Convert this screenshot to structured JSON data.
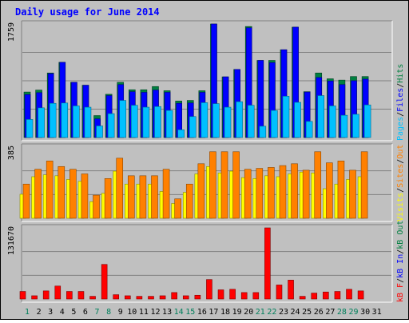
{
  "colors": {
    "background": "#c0c0c0",
    "title": "#0000ff",
    "hits": "#008040",
    "files": "#0000ff",
    "pages": "#00c0ff",
    "visits": "#ffff00",
    "sites": "#ff8000",
    "kbytes": "#ff0000",
    "weekend": "#00805c"
  },
  "chart_data": [
    {
      "type": "bar",
      "title": "Daily usage for June 2014",
      "categories": [
        "1",
        "2",
        "3",
        "4",
        "5",
        "6",
        "7",
        "8",
        "9",
        "10",
        "11",
        "12",
        "13",
        "14",
        "15",
        "16",
        "17",
        "18",
        "19",
        "20",
        "21",
        "22",
        "23",
        "24",
        "25",
        "26",
        "27",
        "28",
        "29",
        "30",
        "31"
      ],
      "weekend_days": [
        "1",
        "7",
        "8",
        "14",
        "15",
        "21",
        "22",
        "28",
        "29"
      ],
      "ymax_label": "1759",
      "ylim": [
        0,
        1759
      ],
      "axis_legend": [
        {
          "text": "Pages",
          "color_key": "pages"
        },
        {
          "text": "/",
          "color_key": "separator"
        },
        {
          "text": "Files",
          "color_key": "files"
        },
        {
          "text": "/",
          "color_key": "separator"
        },
        {
          "text": "Hits",
          "color_key": "hits"
        }
      ],
      "series": [
        {
          "name": "Hits",
          "color_key": "hits",
          "values": [
            705,
            735,
            1000,
            1165,
            855,
            810,
            340,
            670,
            855,
            740,
            740,
            790,
            725,
            565,
            575,
            725,
            1759,
            940,
            1055,
            1720,
            1195,
            1195,
            1360,
            1710,
            710,
            1000,
            910,
            890,
            945,
            945,
            null
          ]
        },
        {
          "name": "Files",
          "color_key": "files",
          "values": [
            665,
            695,
            990,
            1165,
            855,
            810,
            290,
            650,
            820,
            710,
            700,
            735,
            700,
            530,
            535,
            700,
            1759,
            940,
            1055,
            1700,
            1195,
            1160,
            1360,
            1710,
            705,
            930,
            875,
            820,
            880,
            905,
            null
          ]
        },
        {
          "name": "Pages",
          "color_key": "pages",
          "values": [
            280,
            460,
            530,
            535,
            490,
            470,
            180,
            370,
            575,
            500,
            470,
            480,
            420,
            120,
            325,
            540,
            525,
            470,
            555,
            500,
            175,
            420,
            640,
            545,
            250,
            650,
            490,
            345,
            360,
            505,
            null
          ]
        }
      ]
    },
    {
      "type": "bar",
      "ymax_label": "385",
      "ylim": [
        0,
        385
      ],
      "axis_legend": [
        {
          "text": "Visits",
          "color_key": "visits"
        },
        {
          "text": "/",
          "color_key": "separator"
        },
        {
          "text": "Sites",
          "color_key": "sites"
        },
        {
          "text": "/",
          "color_key": "separator"
        },
        {
          "text": "Out",
          "color_key": "sites"
        }
      ],
      "series": [
        {
          "name": "Visits",
          "color_key": "visits",
          "values": [
            130,
            225,
            235,
            230,
            210,
            200,
            90,
            135,
            255,
            185,
            185,
            185,
            145,
            80,
            140,
            240,
            280,
            245,
            255,
            220,
            215,
            230,
            225,
            240,
            250,
            245,
            160,
            185,
            210,
            225,
            null
          ]
        },
        {
          "name": "Sites",
          "color_key": "sites",
          "values": [
            185,
            265,
            310,
            280,
            265,
            240,
            125,
            215,
            325,
            230,
            230,
            230,
            265,
            105,
            185,
            295,
            360,
            360,
            360,
            265,
            270,
            275,
            285,
            295,
            260,
            360,
            300,
            310,
            260,
            360,
            null
          ]
        }
      ]
    },
    {
      "type": "bar",
      "ymax_label": "131670",
      "ylim": [
        0,
        131670
      ],
      "axis_legend": [
        {
          "text": "kB F",
          "color_key": "kbytes"
        },
        {
          "text": "/",
          "color_key": "separator"
        },
        {
          "text": "kB In",
          "color_key": "files"
        },
        {
          "text": "/",
          "color_key": "separator"
        },
        {
          "text": "kB Out",
          "color_key": "hits"
        }
      ],
      "series": [
        {
          "name": "kB F",
          "color_key": "kbytes",
          "values": [
            14000,
            6000,
            15000,
            24000,
            14000,
            14000,
            5000,
            64000,
            8000,
            6000,
            5000,
            5000,
            6000,
            12000,
            6000,
            7000,
            36000,
            17000,
            18000,
            12000,
            12000,
            131670,
            26000,
            35000,
            5000,
            11000,
            13000,
            14000,
            18000,
            15000,
            null
          ]
        }
      ]
    }
  ]
}
